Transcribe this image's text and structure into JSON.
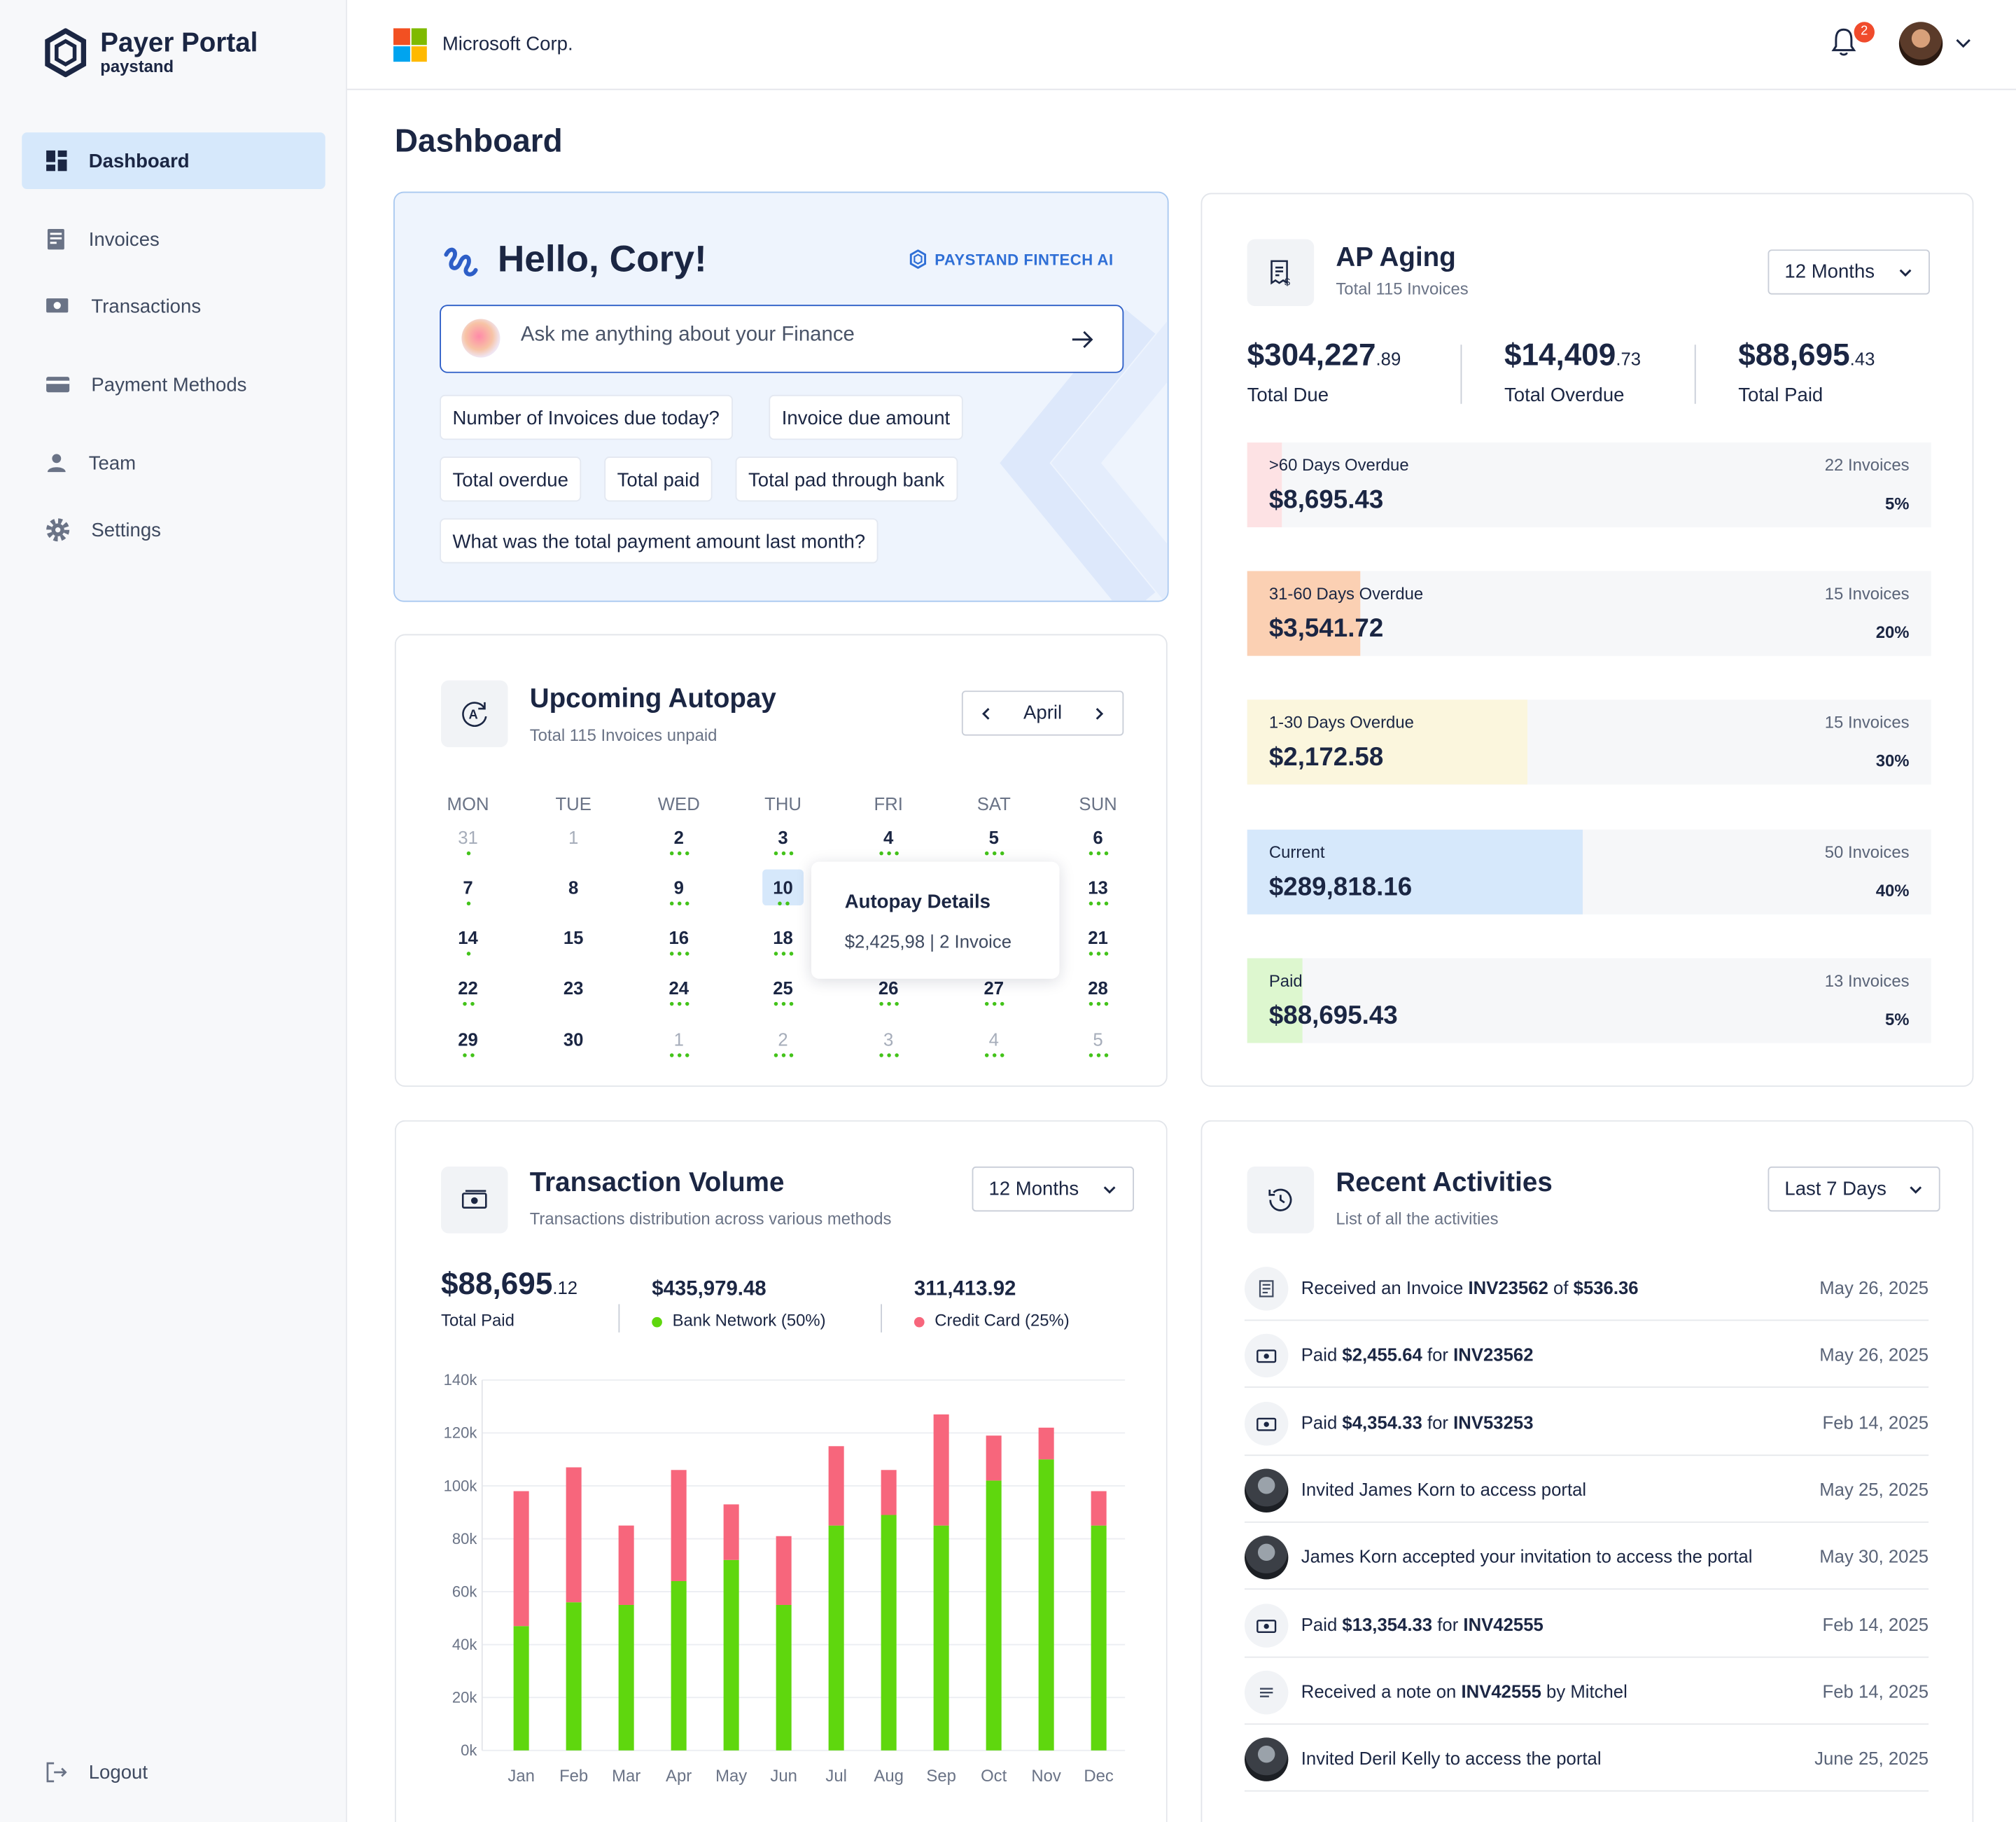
{
  "brand": {
    "title": "Payer Portal",
    "subtitle": "paystand"
  },
  "nav": [
    {
      "label": "Dashboard"
    },
    {
      "label": "Invoices"
    },
    {
      "label": "Transactions"
    },
    {
      "label": "Payment Methods"
    },
    {
      "label": "Team"
    },
    {
      "label": "Settings"
    }
  ],
  "logout": "Logout",
  "header": {
    "org": "Microsoft Corp.",
    "notifications": "2"
  },
  "page_title": "Dashboard",
  "hello": {
    "greeting": "Hello, Cory!",
    "ai_label": "PAYSTAND FINTECH AI",
    "placeholder": "Ask me anything about your Finance",
    "chips": [
      "Number of Invoices due today?",
      "Invoice due amount",
      "Total overdue",
      "Total paid",
      "Total pad through bank",
      "What was the total payment amount last month?"
    ]
  },
  "aging": {
    "title": "AP Aging",
    "subtitle": "Total 115 Invoices",
    "range": "12 Months",
    "kpis": [
      {
        "main": "$304,227",
        "cents": ".89",
        "label": "Total Due"
      },
      {
        "main": "$14,409",
        "cents": ".73",
        "label": "Total Overdue"
      },
      {
        "main": "$88,695",
        "cents": ".43",
        "label": "Total Paid"
      }
    ],
    "rows": [
      {
        "label": ">60 Days Overdue",
        "amount": "$8,695.43",
        "invoices": "22 Invoices",
        "pct": "5%",
        "fraction": 0.05,
        "color": "#fde2e4"
      },
      {
        "label": "31-60 Days Overdue",
        "amount": "$3,541.72",
        "invoices": "15 Invoices",
        "pct": "20%",
        "fraction": 0.165,
        "color": "#fbd0b3"
      },
      {
        "label": "1-30 Days Overdue",
        "amount": "$2,172.58",
        "invoices": "15 Invoices",
        "pct": "30%",
        "fraction": 0.41,
        "color": "#fbf6dd"
      },
      {
        "label": "Current",
        "amount": "$289,818.16",
        "invoices": "50 Invoices",
        "pct": "40%",
        "fraction": 0.49,
        "color": "#d6e8fb"
      },
      {
        "label": "Paid",
        "amount": "$88,695.43",
        "invoices": "13 Invoices",
        "pct": "5%",
        "fraction": 0.08,
        "color": "#ddf7cf"
      }
    ]
  },
  "autopay": {
    "title": "Upcoming Autopay",
    "subtitle": "Total 115 Invoices unpaid",
    "month": "April",
    "weekdays": [
      "MON",
      "TUE",
      "WED",
      "THU",
      "FRI",
      "SAT",
      "SUN"
    ],
    "weeks": [
      [
        {
          "d": "31",
          "m": true,
          "dots": 1
        },
        {
          "d": "1",
          "m": true,
          "dots": 0
        },
        {
          "d": "2",
          "dots": 3
        },
        {
          "d": "3",
          "dots": 3
        },
        {
          "d": "4",
          "dots": 3
        },
        {
          "d": "5",
          "dots": 3
        },
        {
          "d": "6",
          "dots": 3
        }
      ],
      [
        {
          "d": "7",
          "dots": 1
        },
        {
          "d": "8",
          "dots": 0
        },
        {
          "d": "9",
          "dots": 3
        },
        {
          "d": "10",
          "dots": 2
        },
        {
          "d": "11",
          "dots": 0
        },
        {
          "d": "12",
          "dots": 0
        },
        {
          "d": "13",
          "dots": 3
        }
      ],
      [
        {
          "d": "14",
          "dots": 1
        },
        {
          "d": "15",
          "dots": 0
        },
        {
          "d": "16",
          "dots": 3
        },
        {
          "d": "18",
          "dots": 3
        },
        {
          "d": "19",
          "dots": 0
        },
        {
          "d": "20",
          "dots": 0
        },
        {
          "d": "21",
          "dots": 3
        }
      ],
      [
        {
          "d": "22",
          "dots": 2
        },
        {
          "d": "23",
          "dots": 0
        },
        {
          "d": "24",
          "dots": 3
        },
        {
          "d": "25",
          "dots": 3
        },
        {
          "d": "26",
          "dots": 3
        },
        {
          "d": "27",
          "dots": 3
        },
        {
          "d": "28",
          "dots": 3
        }
      ],
      [
        {
          "d": "29",
          "dots": 2
        },
        {
          "d": "30",
          "dots": 0
        },
        {
          "d": "1",
          "m": true,
          "dots": 3
        },
        {
          "d": "2",
          "m": true,
          "dots": 3
        },
        {
          "d": "3",
          "m": true,
          "dots": 3
        },
        {
          "d": "4",
          "m": true,
          "dots": 3
        },
        {
          "d": "5",
          "m": true,
          "dots": 3
        }
      ]
    ],
    "tooltip": {
      "title": "Autopay Details",
      "detail": "$2,425,98 | 2 Invoice"
    }
  },
  "volume": {
    "title": "Transaction Volume",
    "subtitle": "Transactions distribution across various methods",
    "range": "12 Months",
    "total": {
      "main": "$88,695",
      "cents": ".12",
      "label": "Total Paid"
    },
    "bank": {
      "value": "$435,979.48",
      "label": "Bank Network (50%)",
      "color": "#5fd70e"
    },
    "card": {
      "value": "311,413.92",
      "label": "Credit Card (25%)",
      "color": "#f7667c"
    }
  },
  "chart_data": {
    "type": "bar",
    "stacked": true,
    "categories": [
      "Jan",
      "Feb",
      "Mar",
      "Apr",
      "May",
      "Jun",
      "Jul",
      "Aug",
      "Sep",
      "Oct",
      "Nov",
      "Dec"
    ],
    "series": [
      {
        "name": "Bank Network",
        "values": [
          47,
          56,
          55,
          64,
          72,
          55,
          85,
          89,
          85,
          102,
          110,
          85
        ]
      },
      {
        "name": "Credit Card",
        "values": [
          51,
          51,
          30,
          42,
          21,
          26,
          30,
          17,
          42,
          17,
          12,
          13
        ]
      }
    ],
    "yticks": [
      "0k",
      "20k",
      "40k",
      "60k",
      "80k",
      "100k",
      "120k",
      "140k"
    ],
    "ylim": [
      0,
      140
    ],
    "grid": true
  },
  "activities": {
    "title": "Recent Activities",
    "subtitle": "List of all the activities",
    "range": "Last 7 Days",
    "items": [
      {
        "icon": "invoice-icon",
        "pre": "Received an Invoice ",
        "b1": "INV23562",
        "mid": " of ",
        "b2": "$536.36",
        "post": "",
        "date": "May 26, 2025"
      },
      {
        "icon": "money-icon",
        "pre": "Paid ",
        "b1": "$2,455.64",
        "mid": " for ",
        "b2": "INV23562",
        "post": "",
        "date": "May 26, 2025"
      },
      {
        "icon": "money-icon",
        "pre": "Paid ",
        "b1": "$4,354.33",
        "mid": " for ",
        "b2": "INV53253",
        "post": "",
        "date": "Feb 14, 2025"
      },
      {
        "icon": "user-photo",
        "pre": "Invited James Korn to access portal",
        "b1": "",
        "mid": "",
        "b2": "",
        "post": "",
        "date": "May 25, 2025"
      },
      {
        "icon": "user-photo",
        "pre": "James Korn accepted your invitation to access the portal",
        "b1": "",
        "mid": "",
        "b2": "",
        "post": "",
        "date": "May 30, 2025"
      },
      {
        "icon": "money-icon",
        "pre": "Paid ",
        "b1": "$13,354.33",
        "mid": " for ",
        "b2": "INV42555",
        "post": "",
        "date": "Feb 14, 2025"
      },
      {
        "icon": "note-icon",
        "pre": "Received a note on ",
        "b1": "INV42555",
        "mid": " by Mitchel",
        "b2": "",
        "post": "",
        "date": "Feb 14, 2025"
      },
      {
        "icon": "user-photo",
        "pre": "Invited Deril Kelly to access the portal",
        "b1": "",
        "mid": "",
        "b2": "",
        "post": "",
        "date": "June 25, 2025"
      }
    ]
  }
}
